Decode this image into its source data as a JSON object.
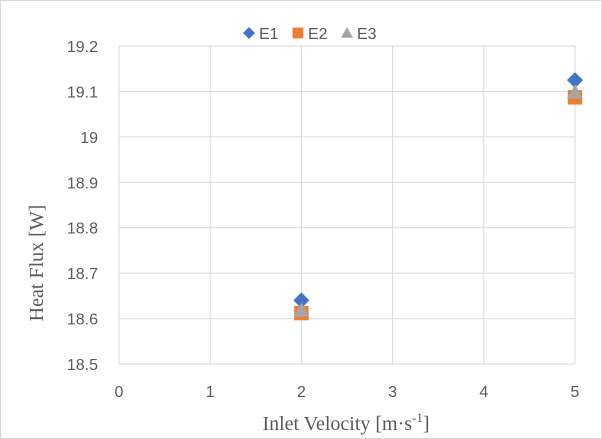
{
  "chart_data": {
    "type": "scatter",
    "title": "",
    "xlabel": "Inlet Velocity [m·s",
    "xlabel_sup": "-1",
    "xlabel_end": "]",
    "ylabel": "Heat Flux [W]",
    "xlim": [
      0,
      5
    ],
    "ylim": [
      18.5,
      19.2
    ],
    "x_ticks": [
      "0",
      "1",
      "2",
      "3",
      "4",
      "5"
    ],
    "y_ticks": [
      "18.5",
      "18.6",
      "18.7",
      "18.8",
      "18.9",
      "19",
      "19.1",
      "19.2"
    ],
    "grid": true,
    "legend_position": "top-center",
    "series": [
      {
        "name": "E1",
        "marker": "diamond",
        "color": "#4472c4",
        "x": [
          2,
          5
        ],
        "y": [
          18.64,
          19.125
        ]
      },
      {
        "name": "E2",
        "marker": "square",
        "color": "#ed7d31",
        "x": [
          2,
          5
        ],
        "y": [
          18.612,
          19.087
        ]
      },
      {
        "name": "E3",
        "marker": "triangle",
        "color": "#a5a5a5",
        "x": [
          2,
          5
        ],
        "y": [
          18.618,
          19.098
        ]
      }
    ]
  }
}
